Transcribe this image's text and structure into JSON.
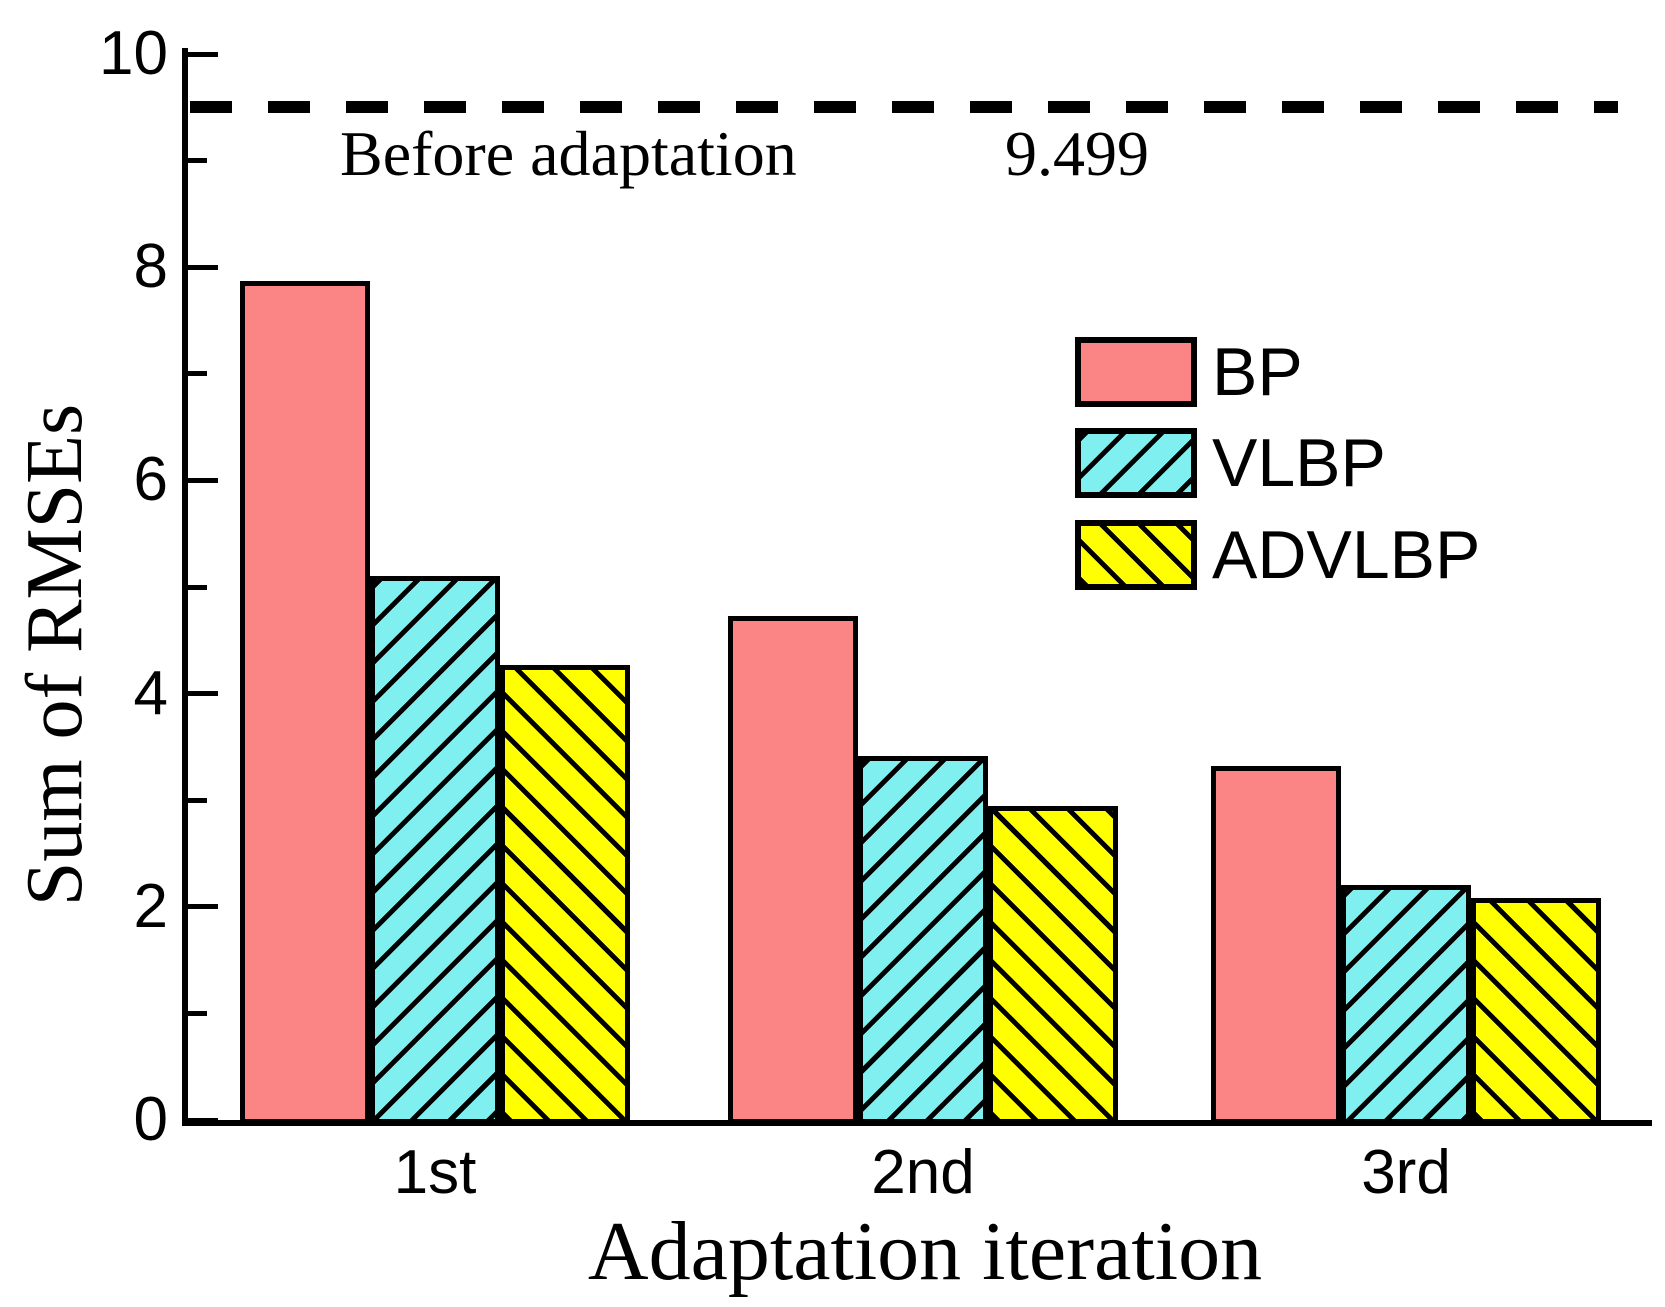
{
  "chart_data": {
    "type": "bar",
    "categories": [
      "1st",
      "2nd",
      "3rd"
    ],
    "series": [
      {
        "name": "BP",
        "values": [
          7.87,
          4.73,
          3.32
        ],
        "color": "#fb8484",
        "hatch": "none"
      },
      {
        "name": "VLBP",
        "values": [
          5.1,
          3.41,
          2.2
        ],
        "color": "#7fefef",
        "hatch": "forward-diagonal"
      },
      {
        "name": "ADVLBP",
        "values": [
          4.27,
          2.95,
          2.08
        ],
        "color": "#ffff00",
        "hatch": "backward-diagonal"
      }
    ],
    "xlabel": "Adaptation iteration",
    "ylabel": "Sum of RMSEs",
    "ylim": [
      0,
      10
    ],
    "yticks": [
      0,
      2,
      4,
      6,
      8,
      10
    ],
    "ytick_labels": [
      "0",
      "2",
      "4",
      "6",
      "8",
      "10"
    ],
    "minor_yticks": [
      1,
      3,
      5,
      7,
      9
    ],
    "grid": false,
    "legend_position": "upper-right-inside",
    "reference_line": {
      "value": 9.499,
      "label": "Before adaptation",
      "value_label": "9.499",
      "style": "dashed",
      "color": "#000000"
    },
    "hatch_line_color": "#000000",
    "bar_border_color": "#000000",
    "axis_color": "#000000",
    "background_color": "#ffffff"
  }
}
